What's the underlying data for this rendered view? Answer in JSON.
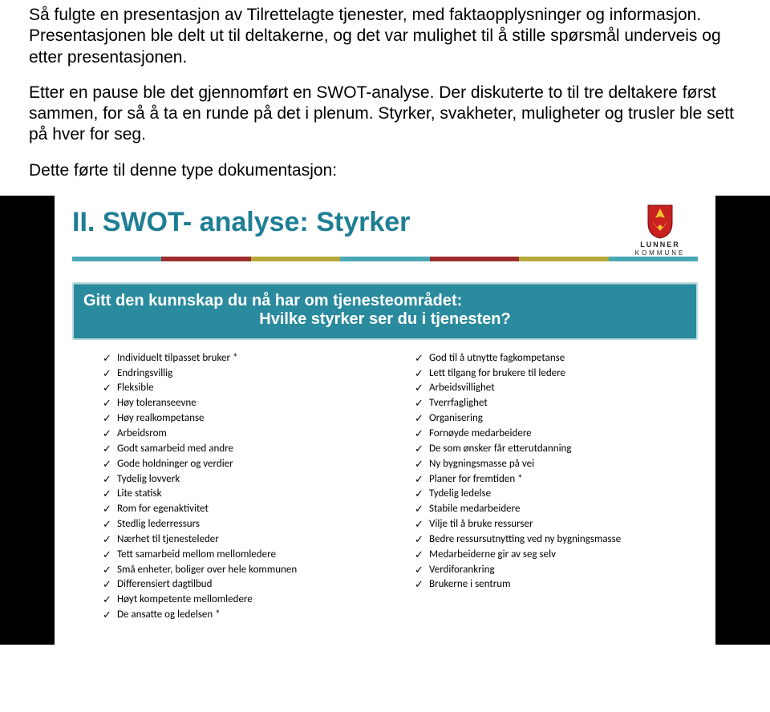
{
  "intro": {
    "p1": "Så fulgte en presentasjon av Tilrettelagte tjenester, med faktaopplysninger og informasjon. Presentasjonen ble delt ut til deltakerne, og det var mulighet til å stille spørsmål underveis og etter presentasjonen.",
    "p2": "Etter en pause ble det gjennomført en SWOT-analyse. Der diskuterte to til tre deltakere først sammen, for så å ta en runde på det i plenum. Styrker, svakheter, muligheter og trusler ble sett på hver for seg.",
    "p3": "Dette førte til denne type dokumentasjon:",
    "text_color": "#000000",
    "fontsize": 21
  },
  "slide": {
    "title": "II. SWOT- analyse: Styrker",
    "title_color": "#1e7e93",
    "title_fontsize": 34,
    "background_color": "#ffffff",
    "frame_color": "#000000",
    "stripe_colors": [
      "#4aa7b5",
      "#9c2d2d",
      "#b7a83a",
      "#4aa7b5",
      "#9c2d2d",
      "#b7a83a",
      "#4aa7b5"
    ],
    "logo": {
      "top_line": "LUNNER",
      "bottom_line": "KOMMUNE",
      "shield_fill": "#c92020",
      "shield_accent": "#f4c430",
      "shield_stroke": "#6b1010"
    },
    "question": {
      "line1": "Gitt den kunnskap du nå har om tjenesteområdet:",
      "line2": "Hvilke styrker ser du i tjenesten?",
      "bg_color": "#2a8a9e",
      "border_color": "#b9d9e0",
      "text_color": "#ffffff",
      "fontsize": 20
    },
    "list": {
      "item_fontsize": 13,
      "item_color": "#000000",
      "check_color": "#000000",
      "left": [
        "Individuelt tilpasset bruker *",
        "Endringsvillig",
        "Fleksible",
        "Høy toleranseevne",
        "Høy realkompetanse",
        "Arbeidsrom",
        "Godt samarbeid med andre",
        "Gode holdninger og verdier",
        "Tydelig lovverk",
        "Lite statisk",
        "Rom for egenaktivitet",
        "Stedlig lederressurs",
        "Nærhet til tjenesteleder",
        "Tett samarbeid mellom mellomledere",
        "Små enheter, boliger over hele kommunen",
        "Differensiert dagtilbud",
        "Høyt kompetente mellomledere",
        "De ansatte og ledelsen *"
      ],
      "right": [
        "God til å utnytte fagkompetanse",
        "Lett tilgang for brukere til ledere",
        "Arbeidsvillighet",
        "Tverrfaglighet",
        "Organisering",
        "Fornøyde medarbeidere",
        "De som ønsker får etterutdanning",
        "Ny bygningsmasse på vei",
        "Planer for fremtiden *",
        "Tydelig ledelse",
        "Stabile medarbeidere",
        "Vilje til å bruke ressurser",
        "Bedre ressursutnytting ved ny bygningsmasse",
        "Medarbeiderne gir av seg selv",
        "Verdiforankring",
        "Brukerne i sentrum"
      ]
    }
  }
}
